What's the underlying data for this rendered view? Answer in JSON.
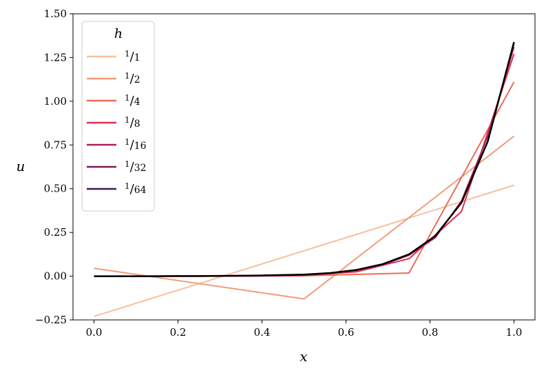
{
  "chart_data": {
    "type": "line",
    "xlabel": "x",
    "ylabel": "u",
    "xlim": [
      -0.05,
      1.05
    ],
    "ylim": [
      -0.25,
      1.5
    ],
    "xticks": [
      0.0,
      0.2,
      0.4,
      0.6,
      0.8,
      1.0
    ],
    "xtick_labels": [
      "0.0",
      "0.2",
      "0.4",
      "0.6",
      "0.8",
      "1.0"
    ],
    "yticks": [
      -0.25,
      0.0,
      0.25,
      0.5,
      0.75,
      1.0,
      1.25,
      1.5
    ],
    "ytick_labels": [
      "−0.25",
      "0.00",
      "0.25",
      "0.50",
      "0.75",
      "1.00",
      "1.25",
      "1.50"
    ],
    "grid": false,
    "legend": {
      "title": "h",
      "placement": "top-left"
    },
    "series": [
      {
        "name": "1/1",
        "num": "1",
        "den": "1",
        "color": "#f5c0a0",
        "x": [
          0,
          1
        ],
        "y": [
          -0.23,
          0.52
        ]
      },
      {
        "name": "1/2",
        "num": "1",
        "den": "2",
        "color": "#f19d78",
        "x": [
          0,
          0.5,
          1
        ],
        "y": [
          0.045,
          -0.13,
          0.8
        ]
      },
      {
        "name": "1/4",
        "num": "1",
        "den": "4",
        "color": "#ec6b54",
        "x": [
          0,
          0.25,
          0.5,
          0.75,
          1
        ],
        "y": [
          0.0,
          0.0,
          0.002,
          0.018,
          1.11
        ]
      },
      {
        "name": "1/8",
        "num": "1",
        "den": "8",
        "color": "#dc2f4f",
        "x": [
          0,
          0.125,
          0.25,
          0.375,
          0.5,
          0.625,
          0.75,
          0.875,
          1
        ],
        "y": [
          0.0,
          0.0,
          0.0,
          0.001,
          0.004,
          0.025,
          0.1,
          0.37,
          1.27
        ]
      },
      {
        "name": "1/16",
        "num": "1",
        "den": "16",
        "color": "#b21a5d",
        "x": [
          0,
          0.125,
          0.25,
          0.375,
          0.5,
          0.5625,
          0.625,
          0.6875,
          0.75,
          0.8125,
          0.875,
          0.9375,
          1
        ],
        "y": [
          0.0,
          0.0,
          0.0,
          0.002,
          0.008,
          0.016,
          0.033,
          0.065,
          0.12,
          0.22,
          0.43,
          0.8,
          1.31
        ]
      },
      {
        "name": "1/32",
        "num": "1",
        "den": "32",
        "color": "#751a5a",
        "x": [
          0,
          0.125,
          0.25,
          0.375,
          0.5,
          0.5625,
          0.625,
          0.6875,
          0.75,
          0.8125,
          0.875,
          0.9375,
          1
        ],
        "y": [
          0.0,
          0.0,
          0.001,
          0.003,
          0.009,
          0.018,
          0.035,
          0.068,
          0.125,
          0.23,
          0.42,
          0.77,
          1.33
        ]
      },
      {
        "name": "1/64",
        "num": "1",
        "den": "64",
        "color": "#3e1950",
        "x": [
          0,
          0.125,
          0.25,
          0.375,
          0.5,
          0.5625,
          0.625,
          0.6875,
          0.75,
          0.8125,
          0.875,
          0.9375,
          1
        ],
        "y": [
          0.0,
          0.0,
          0.001,
          0.003,
          0.009,
          0.018,
          0.036,
          0.069,
          0.125,
          0.23,
          0.42,
          0.77,
          1.335
        ]
      },
      {
        "color": "#000000",
        "x": [
          0,
          0.125,
          0.25,
          0.375,
          0.5,
          0.5625,
          0.625,
          0.6875,
          0.75,
          0.8125,
          0.875,
          0.9375,
          1
        ],
        "y": [
          0.0,
          0.0,
          0.001,
          0.003,
          0.009,
          0.018,
          0.036,
          0.069,
          0.125,
          0.23,
          0.42,
          0.77,
          1.338
        ]
      }
    ]
  }
}
